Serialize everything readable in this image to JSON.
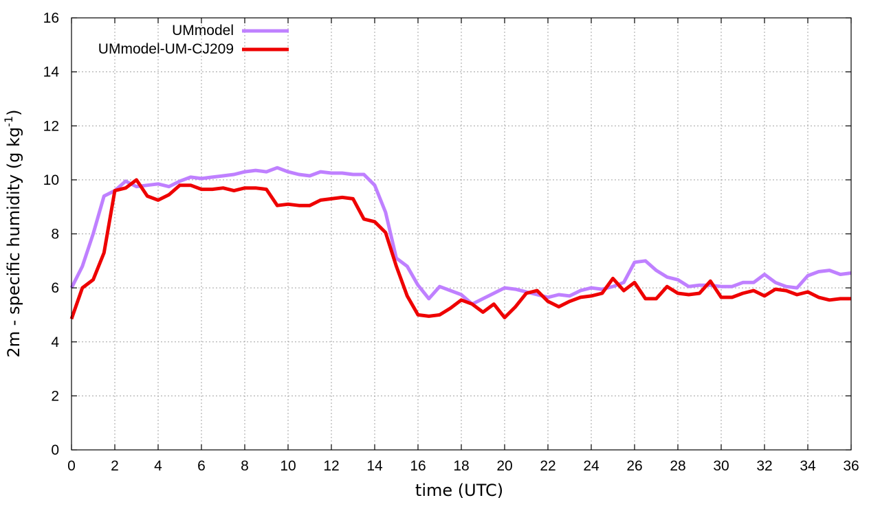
{
  "chart_data": {
    "type": "line",
    "xlabel": "time (UTC)",
    "ylabel": {
      "main": "2m - specific humidity (g kg",
      "superscript": "-1",
      "tail": ")"
    },
    "xlim": [
      0,
      36
    ],
    "ylim": [
      0,
      16
    ],
    "xticks": [
      0,
      2,
      4,
      6,
      8,
      10,
      12,
      14,
      16,
      18,
      20,
      22,
      24,
      26,
      28,
      30,
      32,
      34,
      36
    ],
    "yticks": [
      0,
      2,
      4,
      6,
      8,
      10,
      12,
      14,
      16
    ],
    "grid": true,
    "legend": "top-left",
    "series": [
      {
        "name": "UMmodel",
        "color": "#bf80ff",
        "x": [
          0,
          0.5,
          1,
          1.5,
          2,
          2.5,
          3,
          3.5,
          4,
          4.5,
          5,
          5.5,
          6,
          6.5,
          7,
          7.5,
          8,
          8.5,
          9,
          9.5,
          10,
          10.5,
          11,
          11.5,
          12,
          12.5,
          13,
          13.5,
          14,
          14.5,
          15,
          15.5,
          16,
          16.5,
          17,
          17.5,
          18,
          18.5,
          19,
          19.5,
          20,
          20.5,
          21,
          21.5,
          22,
          22.5,
          23,
          23.5,
          24,
          24.5,
          25,
          25.5,
          26,
          26.5,
          27,
          27.5,
          28,
          28.5,
          29,
          29.5,
          30,
          30.5,
          31,
          31.5,
          32,
          32.5,
          33,
          33.5,
          34,
          34.5,
          35,
          35.5,
          36
        ],
        "values": [
          6.0,
          6.8,
          8.0,
          9.4,
          9.6,
          9.95,
          9.75,
          9.8,
          9.85,
          9.75,
          9.95,
          10.1,
          10.05,
          10.1,
          10.15,
          10.2,
          10.3,
          10.35,
          10.3,
          10.45,
          10.3,
          10.2,
          10.15,
          10.3,
          10.25,
          10.25,
          10.2,
          10.2,
          9.8,
          8.8,
          7.1,
          6.8,
          6.1,
          5.6,
          6.05,
          5.9,
          5.75,
          5.4,
          5.6,
          5.8,
          6.0,
          5.95,
          5.85,
          5.75,
          5.65,
          5.75,
          5.7,
          5.9,
          6.0,
          5.95,
          6.05,
          6.2,
          6.95,
          7.0,
          6.65,
          6.4,
          6.3,
          6.05,
          6.1,
          6.1,
          6.05,
          6.05,
          6.2,
          6.2,
          6.5,
          6.2,
          6.05,
          6.0,
          6.45,
          6.6,
          6.65,
          6.5,
          6.55
        ]
      },
      {
        "name": "UMmodel-UM-CJ209",
        "color": "#ee0000",
        "x": [
          0,
          0.5,
          1,
          1.5,
          2,
          2.5,
          3,
          3.5,
          4,
          4.5,
          5,
          5.5,
          6,
          6.5,
          7,
          7.5,
          8,
          8.5,
          9,
          9.5,
          10,
          10.5,
          11,
          11.5,
          12,
          12.5,
          13,
          13.5,
          14,
          14.5,
          15,
          15.5,
          16,
          16.5,
          17,
          17.5,
          18,
          18.5,
          19,
          19.5,
          20,
          20.5,
          21,
          21.5,
          22,
          22.5,
          23,
          23.5,
          24,
          24.5,
          25,
          25.5,
          26,
          26.5,
          27,
          27.5,
          28,
          28.5,
          29,
          29.5,
          30,
          30.5,
          31,
          31.5,
          32,
          32.5,
          33,
          33.5,
          34,
          34.5,
          35,
          35.5,
          36
        ],
        "values": [
          4.85,
          6.0,
          6.3,
          7.3,
          9.6,
          9.7,
          10.0,
          9.4,
          9.25,
          9.45,
          9.8,
          9.8,
          9.65,
          9.65,
          9.7,
          9.6,
          9.7,
          9.7,
          9.65,
          9.05,
          9.1,
          9.05,
          9.05,
          9.25,
          9.3,
          9.35,
          9.3,
          8.55,
          8.45,
          8.05,
          6.8,
          5.7,
          5.0,
          4.95,
          5.0,
          5.25,
          5.55,
          5.4,
          5.1,
          5.4,
          4.9,
          5.3,
          5.8,
          5.9,
          5.5,
          5.3,
          5.5,
          5.65,
          5.7,
          5.8,
          6.35,
          5.9,
          6.2,
          5.6,
          5.6,
          6.05,
          5.8,
          5.75,
          5.8,
          6.25,
          5.65,
          5.65,
          5.8,
          5.9,
          5.7,
          5.95,
          5.9,
          5.75,
          5.85,
          5.65,
          5.55,
          5.6,
          5.6
        ]
      }
    ]
  }
}
